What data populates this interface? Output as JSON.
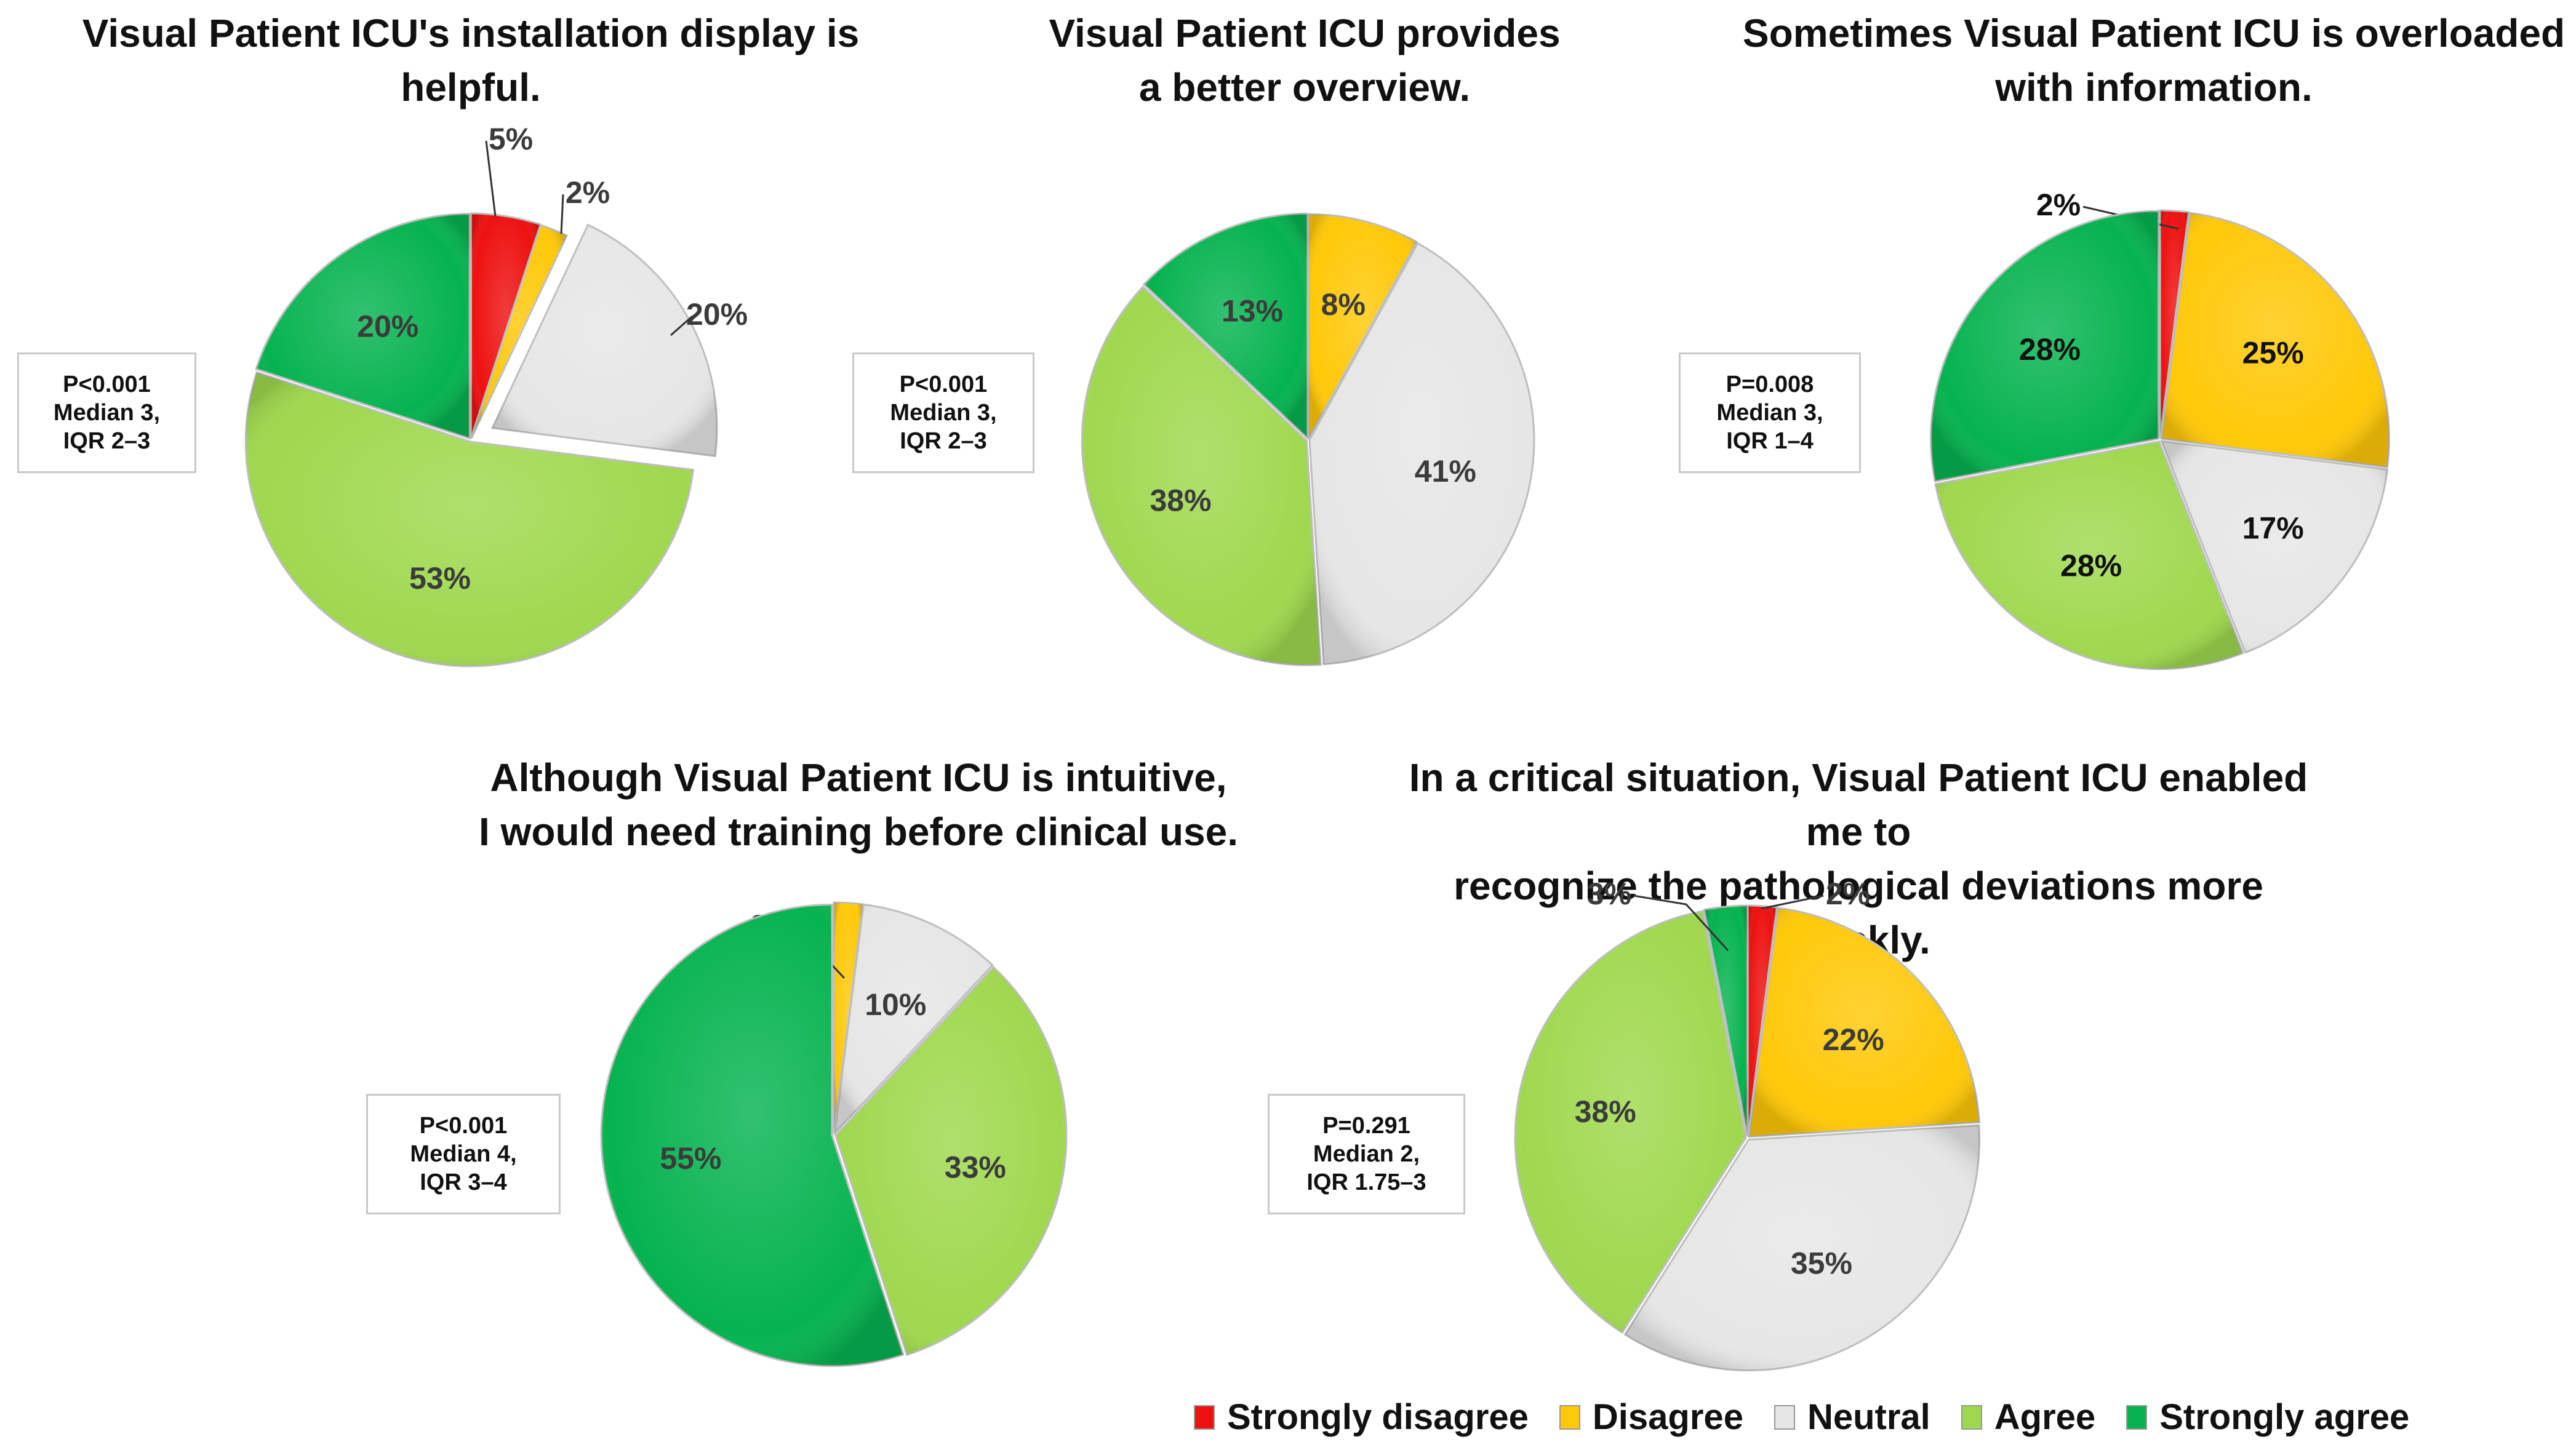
{
  "legend": [
    {
      "label": "Strongly disagree",
      "color": "#ee1111"
    },
    {
      "label": "Disagree",
      "color": "#ffc808"
    },
    {
      "label": "Neutral",
      "color": "#e6e6e6"
    },
    {
      "label": "Agree",
      "color": "#9fd84e"
    },
    {
      "label": "Strongly agree",
      "color": "#06b350"
    }
  ],
  "chart_data": [
    {
      "type": "pie",
      "title": "Visual Patient ICU's installation display is\nhelpful.",
      "stats": [
        "P<0.001",
        "Median 3,",
        "IQR 2–3"
      ],
      "categories": [
        "Strongly disagree",
        "Disagree",
        "Neutral",
        "Agree",
        "Strongly agree"
      ],
      "values": [
        5,
        2,
        20,
        53,
        20
      ],
      "labels": [
        "5%",
        "2%",
        "20%",
        "53%",
        "20%"
      ]
    },
    {
      "type": "pie",
      "title": "Visual Patient ICU provides\na better overview.",
      "stats": [
        "P<0.001",
        "Median 3,",
        "IQR 2–3"
      ],
      "categories": [
        "Strongly disagree",
        "Disagree",
        "Neutral",
        "Agree",
        "Strongly agree"
      ],
      "values": [
        0,
        8,
        41,
        38,
        13
      ],
      "labels": [
        "",
        "8%",
        "41%",
        "38%",
        "13%"
      ]
    },
    {
      "type": "pie",
      "title": "Sometimes Visual Patient ICU is overloaded\nwith information.",
      "stats": [
        "P=0.008",
        "Median 3,",
        "IQR 1–4"
      ],
      "categories": [
        "Strongly disagree",
        "Disagree",
        "Neutral",
        "Agree",
        "Strongly agree"
      ],
      "values": [
        2,
        25,
        17,
        28,
        28
      ],
      "labels": [
        "2%",
        "25%",
        "17%",
        "28%",
        "28%"
      ]
    },
    {
      "type": "pie",
      "title": "Although Visual Patient ICU is intuitive,\nI would need training before clinical use.",
      "stats": [
        "P<0.001",
        "Median 4,",
        "IQR 3–4"
      ],
      "categories": [
        "Strongly disagree",
        "Disagree",
        "Neutral",
        "Agree",
        "Strongly agree"
      ],
      "values": [
        0,
        2,
        10,
        33,
        55
      ],
      "labels": [
        "",
        "2%",
        "10%",
        "33%",
        "55%"
      ]
    },
    {
      "type": "pie",
      "title": "In a critical situation, Visual Patient ICU enabled me to\nrecognize the pathological deviations more quickly.",
      "stats": [
        "P=0.291",
        "Median 2,",
        "IQR 1.75–3"
      ],
      "categories": [
        "Strongly disagree",
        "Disagree",
        "Neutral",
        "Agree",
        "Strongly agree"
      ],
      "values": [
        2,
        22,
        35,
        38,
        3
      ],
      "labels": [
        "2%",
        "22%",
        "35%",
        "38%",
        "3%"
      ]
    }
  ]
}
